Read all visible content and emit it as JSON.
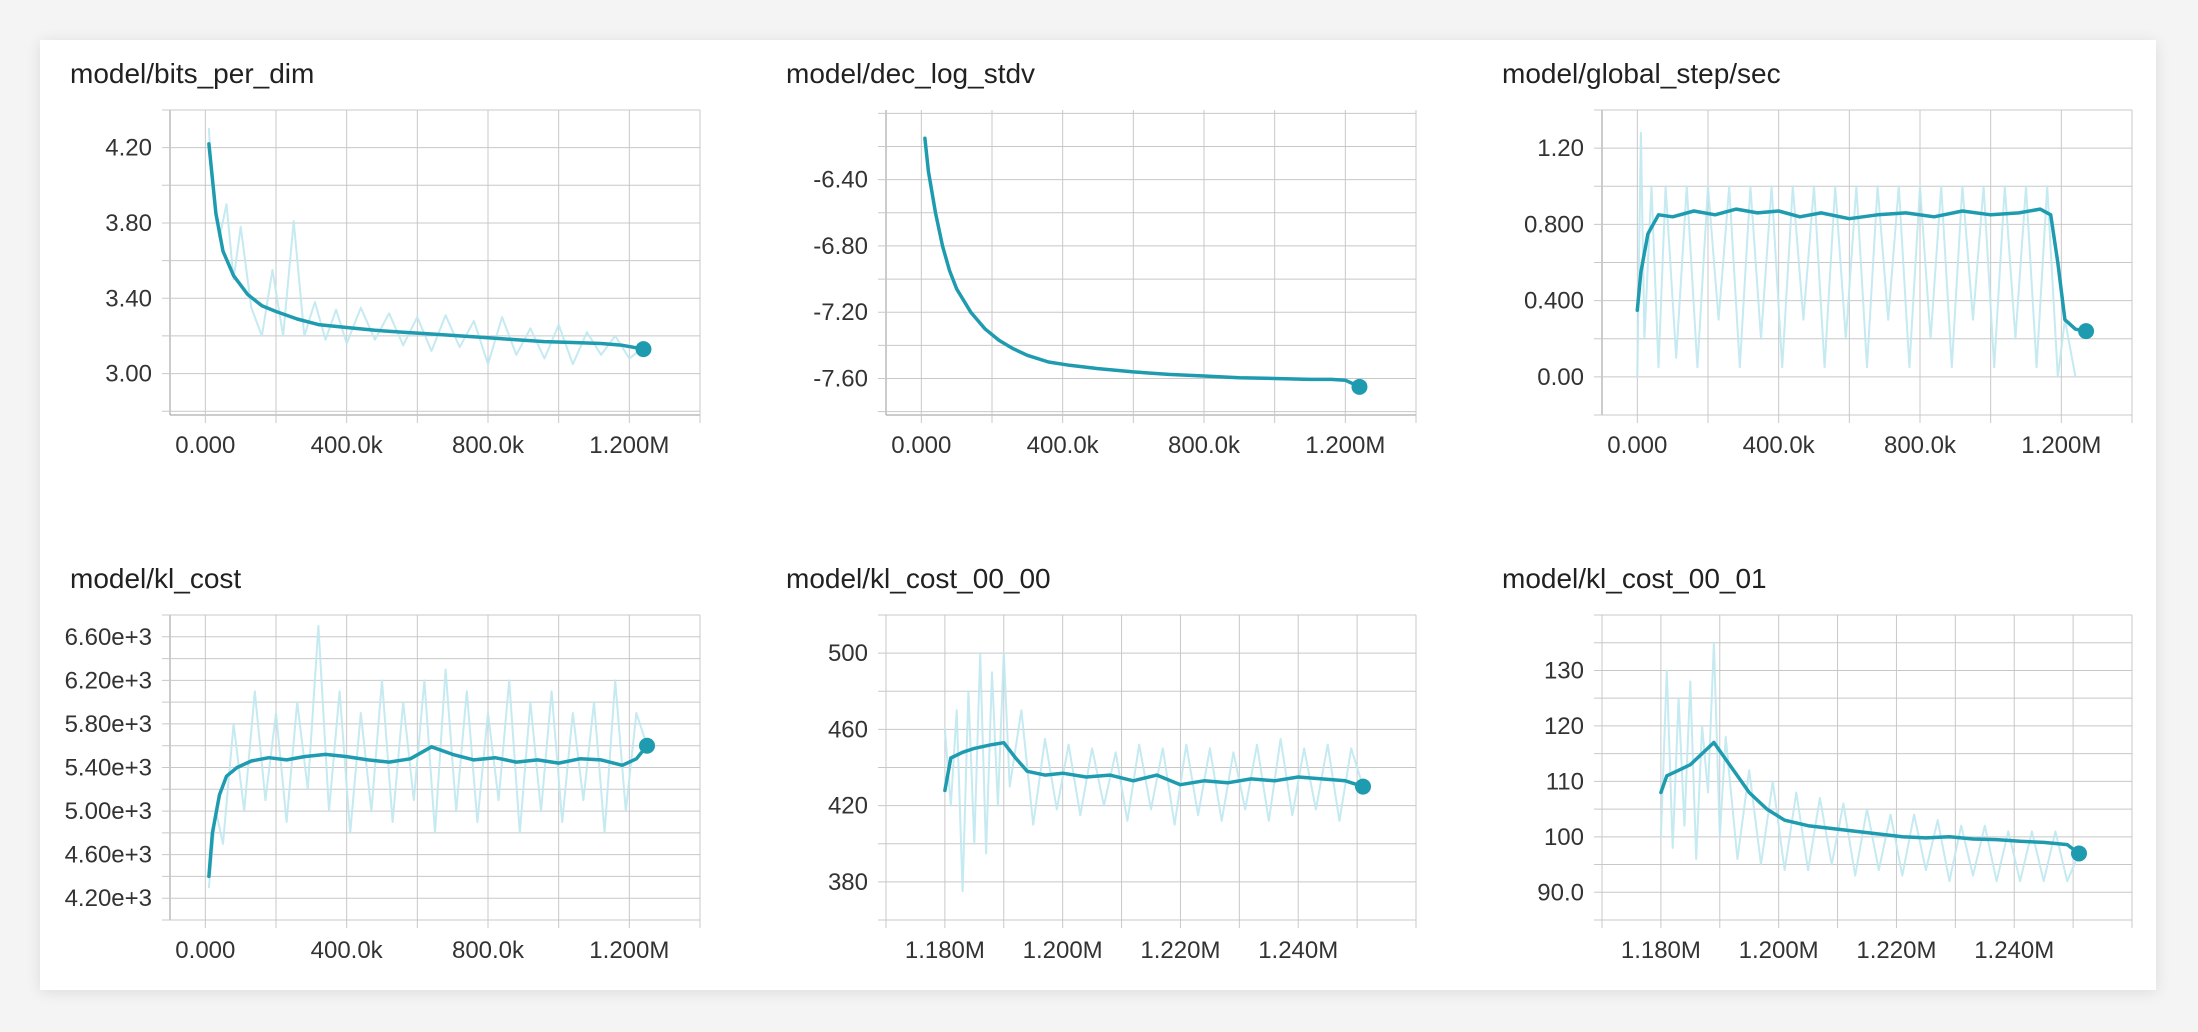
{
  "chart_data": [
    {
      "type": "line",
      "title": "model/bits_per_dim",
      "xlabel": "",
      "ylabel": "",
      "xlim": [
        -100000,
        1400000
      ],
      "ylim": [
        2.78,
        4.4
      ],
      "x_ticks": [
        0,
        400000,
        800000,
        1200000
      ],
      "x_tick_labels": [
        "0.000",
        "400.0k",
        "800.0k",
        "1.200M"
      ],
      "y_ticks": [
        3.0,
        3.4,
        3.8,
        4.2
      ],
      "y_tick_labels": [
        "3.00",
        "3.40",
        "3.80",
        "4.20"
      ],
      "grid": true,
      "series": [
        {
          "role": "smoothed",
          "color": "#1f9bb0",
          "x": [
            10000,
            30000,
            50000,
            80000,
            120000,
            160000,
            200000,
            260000,
            320000,
            400000,
            480000,
            560000,
            640000,
            720000,
            800000,
            880000,
            960000,
            1040000,
            1120000,
            1180000,
            1240000
          ],
          "y": [
            4.22,
            3.85,
            3.65,
            3.52,
            3.42,
            3.36,
            3.33,
            3.29,
            3.26,
            3.245,
            3.23,
            3.22,
            3.21,
            3.2,
            3.19,
            3.18,
            3.17,
            3.165,
            3.16,
            3.15,
            3.13
          ]
        },
        {
          "role": "raw",
          "color": "#bfe8ef",
          "x": [
            10000,
            20000,
            40000,
            60000,
            80000,
            100000,
            130000,
            160000,
            190000,
            220000,
            250000,
            280000,
            310000,
            340000,
            370000,
            400000,
            440000,
            480000,
            520000,
            560000,
            600000,
            640000,
            680000,
            720000,
            760000,
            800000,
            840000,
            880000,
            920000,
            960000,
            1000000,
            1040000,
            1080000,
            1120000,
            1160000,
            1200000,
            1240000
          ],
          "y": [
            4.3,
            4.0,
            3.72,
            3.9,
            3.5,
            3.78,
            3.35,
            3.2,
            3.55,
            3.2,
            3.81,
            3.2,
            3.38,
            3.18,
            3.34,
            3.16,
            3.35,
            3.18,
            3.32,
            3.15,
            3.3,
            3.12,
            3.31,
            3.14,
            3.28,
            3.05,
            3.3,
            3.1,
            3.24,
            3.08,
            3.26,
            3.05,
            3.22,
            3.1,
            3.2,
            3.08,
            3.14
          ]
        }
      ]
    },
    {
      "type": "line",
      "title": "model/dec_log_stdv",
      "xlabel": "",
      "ylabel": "",
      "xlim": [
        -100000,
        1400000
      ],
      "ylim": [
        -7.82,
        -5.98
      ],
      "x_ticks": [
        0,
        400000,
        800000,
        1200000
      ],
      "x_tick_labels": [
        "0.000",
        "400.0k",
        "800.0k",
        "1.200M"
      ],
      "y_ticks": [
        -7.6,
        -7.2,
        -6.8,
        -6.4
      ],
      "y_tick_labels": [
        "-7.60",
        "-7.20",
        "-6.80",
        "-6.40"
      ],
      "grid": true,
      "series": [
        {
          "role": "smoothed",
          "color": "#1f9bb0",
          "x": [
            10000,
            20000,
            40000,
            60000,
            80000,
            100000,
            140000,
            180000,
            220000,
            260000,
            300000,
            360000,
            420000,
            500000,
            600000,
            700000,
            800000,
            900000,
            1000000,
            1100000,
            1160000,
            1200000,
            1240000
          ],
          "y": [
            -6.15,
            -6.35,
            -6.6,
            -6.8,
            -6.95,
            -7.06,
            -7.2,
            -7.3,
            -7.37,
            -7.42,
            -7.46,
            -7.5,
            -7.52,
            -7.54,
            -7.56,
            -7.575,
            -7.585,
            -7.595,
            -7.6,
            -7.605,
            -7.605,
            -7.61,
            -7.65
          ]
        }
      ]
    },
    {
      "type": "line",
      "title": "model/global_step/sec",
      "xlabel": "",
      "ylabel": "",
      "xlim": [
        -100000,
        1400000
      ],
      "ylim": [
        -0.2,
        1.4
      ],
      "x_ticks": [
        0,
        400000,
        800000,
        1200000
      ],
      "x_tick_labels": [
        "0.000",
        "400.0k",
        "800.0k",
        "1.200M"
      ],
      "y_ticks": [
        0.0,
        0.4,
        0.8,
        1.2
      ],
      "y_tick_labels": [
        "0.00",
        "0.400",
        "0.800",
        "1.20"
      ],
      "grid": true,
      "series": [
        {
          "role": "smoothed",
          "color": "#1f9bb0",
          "x": [
            0,
            10000,
            30000,
            60000,
            100000,
            160000,
            220000,
            280000,
            340000,
            400000,
            460000,
            520000,
            600000,
            680000,
            760000,
            840000,
            920000,
            1000000,
            1080000,
            1140000,
            1170000,
            1190000,
            1210000,
            1240000,
            1270000
          ],
          "y": [
            0.35,
            0.55,
            0.75,
            0.85,
            0.84,
            0.87,
            0.85,
            0.88,
            0.86,
            0.87,
            0.84,
            0.86,
            0.83,
            0.85,
            0.86,
            0.84,
            0.87,
            0.85,
            0.86,
            0.88,
            0.85,
            0.6,
            0.3,
            0.25,
            0.24
          ]
        },
        {
          "role": "raw",
          "color": "#bfe8ef",
          "x": [
            0,
            10000,
            20000,
            40000,
            60000,
            80000,
            110000,
            140000,
            170000,
            200000,
            230000,
            260000,
            290000,
            320000,
            350000,
            380000,
            410000,
            440000,
            470000,
            500000,
            530000,
            560000,
            590000,
            620000,
            650000,
            680000,
            710000,
            740000,
            770000,
            800000,
            830000,
            860000,
            890000,
            920000,
            950000,
            980000,
            1010000,
            1040000,
            1070000,
            1100000,
            1130000,
            1160000,
            1190000,
            1210000,
            1240000
          ],
          "y": [
            0.0,
            1.28,
            0.2,
            1.0,
            0.05,
            1.0,
            0.1,
            1.0,
            0.05,
            1.0,
            0.3,
            1.0,
            0.05,
            1.0,
            0.2,
            1.0,
            0.05,
            1.0,
            0.3,
            1.0,
            0.05,
            1.0,
            0.2,
            1.0,
            0.05,
            1.0,
            0.3,
            1.0,
            0.05,
            1.0,
            0.2,
            1.0,
            0.05,
            1.0,
            0.3,
            1.0,
            0.05,
            1.0,
            0.2,
            1.0,
            0.05,
            1.0,
            0.0,
            0.3,
            0.0
          ]
        }
      ]
    },
    {
      "type": "line",
      "title": "model/kl_cost",
      "xlabel": "",
      "ylabel": "",
      "xlim": [
        -100000,
        1400000
      ],
      "ylim": [
        4000,
        6800
      ],
      "x_ticks": [
        0,
        400000,
        800000,
        1200000
      ],
      "x_tick_labels": [
        "0.000",
        "400.0k",
        "800.0k",
        "1.200M"
      ],
      "y_ticks": [
        4200,
        4600,
        5000,
        5400,
        5800,
        6200,
        6600
      ],
      "y_tick_labels": [
        "4.20e+3",
        "4.60e+3",
        "5.00e+3",
        "5.40e+3",
        "5.80e+3",
        "6.20e+3",
        "6.60e+3"
      ],
      "grid": true,
      "series": [
        {
          "role": "smoothed",
          "color": "#1f9bb0",
          "x": [
            10000,
            20000,
            40000,
            60000,
            90000,
            130000,
            180000,
            230000,
            280000,
            340000,
            400000,
            460000,
            520000,
            580000,
            640000,
            700000,
            760000,
            820000,
            880000,
            940000,
            1000000,
            1060000,
            1120000,
            1180000,
            1220000,
            1250000
          ],
          "y": [
            4400,
            4800,
            5150,
            5320,
            5400,
            5460,
            5490,
            5470,
            5500,
            5520,
            5500,
            5470,
            5450,
            5480,
            5590,
            5520,
            5470,
            5490,
            5450,
            5470,
            5440,
            5480,
            5470,
            5420,
            5480,
            5600
          ]
        },
        {
          "role": "raw",
          "color": "#bfe8ef",
          "x": [
            10000,
            30000,
            50000,
            80000,
            110000,
            140000,
            170000,
            200000,
            230000,
            260000,
            290000,
            320000,
            350000,
            380000,
            410000,
            440000,
            470000,
            500000,
            530000,
            560000,
            590000,
            620000,
            650000,
            680000,
            710000,
            740000,
            770000,
            800000,
            830000,
            860000,
            890000,
            920000,
            950000,
            980000,
            1010000,
            1040000,
            1070000,
            1100000,
            1130000,
            1160000,
            1190000,
            1220000,
            1250000
          ],
          "y": [
            4300,
            5000,
            4700,
            5800,
            5000,
            6100,
            5100,
            5900,
            4900,
            6000,
            5200,
            6700,
            5000,
            6100,
            4800,
            5900,
            5000,
            6200,
            4900,
            6000,
            5100,
            6200,
            4800,
            6300,
            5000,
            6100,
            4900,
            5900,
            5100,
            6200,
            4800,
            6000,
            5000,
            6100,
            4900,
            5900,
            5100,
            6000,
            4800,
            6200,
            5000,
            5900,
            5600
          ]
        }
      ]
    },
    {
      "type": "line",
      "title": "model/kl_cost_00_00",
      "xlabel": "",
      "ylabel": "",
      "xlim": [
        1170000,
        1260000
      ],
      "ylim": [
        360,
        520
      ],
      "x_ticks": [
        1180000,
        1200000,
        1220000,
        1240000
      ],
      "x_tick_labels": [
        "1.180M",
        "1.200M",
        "1.220M",
        "1.240M"
      ],
      "y_ticks": [
        380,
        420,
        460,
        500
      ],
      "y_tick_labels": [
        "380",
        "420",
        "460",
        "500"
      ],
      "grid": true,
      "series": [
        {
          "role": "smoothed",
          "color": "#1f9bb0",
          "x": [
            1180000,
            1181000,
            1183000,
            1185000,
            1188000,
            1190000,
            1192000,
            1194000,
            1197000,
            1200000,
            1204000,
            1208000,
            1212000,
            1216000,
            1220000,
            1224000,
            1228000,
            1232000,
            1236000,
            1240000,
            1244000,
            1248000,
            1251000
          ],
          "y": [
            428,
            445,
            448,
            450,
            452,
            453,
            445,
            438,
            436,
            437,
            435,
            436,
            433,
            436,
            431,
            433,
            432,
            434,
            433,
            435,
            434,
            433,
            430
          ]
        },
        {
          "role": "raw",
          "color": "#bfe8ef",
          "x": [
            1180000,
            1181000,
            1182000,
            1183000,
            1184000,
            1185000,
            1186000,
            1187000,
            1188000,
            1189000,
            1190000,
            1191000,
            1193000,
            1195000,
            1197000,
            1199000,
            1201000,
            1203000,
            1205000,
            1207000,
            1209000,
            1211000,
            1213000,
            1215000,
            1217000,
            1219000,
            1221000,
            1223000,
            1225000,
            1227000,
            1229000,
            1231000,
            1233000,
            1235000,
            1237000,
            1239000,
            1241000,
            1243000,
            1245000,
            1247000,
            1249000,
            1251000
          ],
          "y": [
            460,
            420,
            470,
            375,
            480,
            400,
            500,
            395,
            490,
            420,
            500,
            430,
            470,
            410,
            455,
            418,
            452,
            415,
            450,
            420,
            448,
            412,
            452,
            418,
            450,
            410,
            452,
            415,
            450,
            412,
            448,
            418,
            452,
            412,
            455,
            415,
            450,
            418,
            452,
            412,
            450,
            430
          ]
        }
      ]
    },
    {
      "type": "line",
      "title": "model/kl_cost_00_01",
      "xlabel": "",
      "ylabel": "",
      "xlim": [
        1170000,
        1260000
      ],
      "ylim": [
        85,
        140
      ],
      "x_ticks": [
        1180000,
        1200000,
        1220000,
        1240000
      ],
      "x_tick_labels": [
        "1.180M",
        "1.200M",
        "1.220M",
        "1.240M"
      ],
      "y_ticks": [
        90,
        100,
        110,
        120,
        130
      ],
      "y_tick_labels": [
        "90.0",
        "100",
        "110",
        "120",
        "130"
      ],
      "grid": true,
      "series": [
        {
          "role": "smoothed",
          "color": "#1f9bb0",
          "x": [
            1180000,
            1181000,
            1183000,
            1185000,
            1187000,
            1189000,
            1191000,
            1193000,
            1195000,
            1198000,
            1201000,
            1205000,
            1209000,
            1213000,
            1217000,
            1221000,
            1225000,
            1229000,
            1233000,
            1237000,
            1241000,
            1245000,
            1249000,
            1251000
          ],
          "y": [
            108,
            111,
            112,
            113,
            115,
            117,
            114,
            111,
            108,
            105,
            103,
            102,
            101.5,
            101,
            100.5,
            100,
            99.8,
            100,
            99.6,
            99.5,
            99.2,
            99,
            98.6,
            97
          ]
        },
        {
          "role": "raw",
          "color": "#bfe8ef",
          "x": [
            1180000,
            1181000,
            1182000,
            1183000,
            1184000,
            1185000,
            1186000,
            1187000,
            1188000,
            1189000,
            1190000,
            1191000,
            1193000,
            1195000,
            1197000,
            1199000,
            1201000,
            1203000,
            1205000,
            1207000,
            1209000,
            1211000,
            1213000,
            1215000,
            1217000,
            1219000,
            1221000,
            1223000,
            1225000,
            1227000,
            1229000,
            1231000,
            1233000,
            1235000,
            1237000,
            1239000,
            1241000,
            1243000,
            1245000,
            1247000,
            1249000,
            1251000
          ],
          "y": [
            100,
            130,
            98,
            125,
            102,
            128,
            96,
            120,
            108,
            135,
            100,
            118,
            96,
            112,
            95,
            110,
            94,
            108,
            94,
            107,
            95,
            106,
            93,
            105,
            94,
            104,
            93,
            104,
            94,
            103,
            92,
            102,
            93,
            102,
            92,
            101,
            92,
            101,
            92,
            101,
            92,
            97
          ]
        }
      ]
    }
  ]
}
